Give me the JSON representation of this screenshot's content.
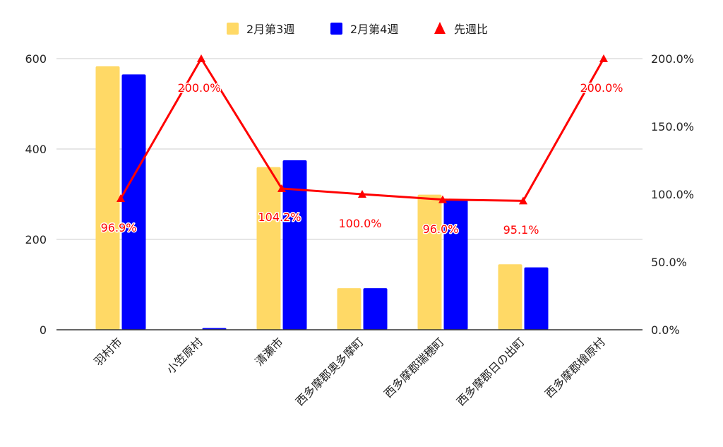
{
  "chart_data": {
    "type": "bar",
    "categories": [
      "羽村市",
      "小笠原村",
      "清瀬市",
      "西多摩郡奥多摩町",
      "西多摩郡瑞穂町",
      "西多摩郡日の出町",
      "西多摩郡檜原村"
    ],
    "series": [
      {
        "name": "2月第3週",
        "kind": "bar",
        "axis": "left",
        "color": "#ffd966",
        "values": [
          583,
          0,
          360,
          92,
          299,
          145,
          0
        ]
      },
      {
        "name": "2月第4週",
        "kind": "bar",
        "axis": "left",
        "color": "#0000ff",
        "values": [
          565,
          4,
          375,
          92,
          287,
          138,
          0
        ]
      },
      {
        "name": "先週比",
        "kind": "line",
        "axis": "right",
        "color": "#ff0000",
        "marker": "triangle",
        "values": [
          96.9,
          200.0,
          104.2,
          100.0,
          96.0,
          95.1,
          200.0
        ]
      }
    ],
    "line_labels": [
      "96.9%",
      "200.0%",
      "104.2%",
      "100.0%",
      "96.0%",
      "95.1%",
      "200.0%"
    ],
    "left_axis": {
      "min": 0,
      "max": 600,
      "ticks": [
        0,
        200,
        400,
        600
      ],
      "tick_labels": [
        "0",
        "200",
        "400",
        "600"
      ]
    },
    "right_axis": {
      "min": 0,
      "max": 200,
      "ticks": [
        0,
        50,
        100,
        150,
        200
      ],
      "tick_labels": [
        "0.0%",
        "50.0%",
        "100.0%",
        "150.0%",
        "200.0%"
      ]
    },
    "grid": true,
    "legend_position": "top-center",
    "title": "",
    "xlabel": "",
    "ylabel": ""
  }
}
